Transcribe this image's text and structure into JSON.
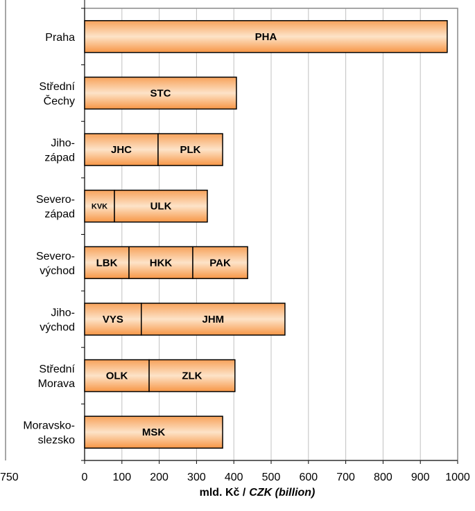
{
  "chart_data": {
    "type": "bar",
    "orientation": "horizontal",
    "stacked": true,
    "xlabel_parts": [
      "mld. Kč /",
      "CZK (billion)"
    ],
    "annotations": [
      "750"
    ],
    "color": "#f79646",
    "grid": true,
    "xlim": [
      0,
      1000
    ],
    "xticks": [
      0,
      100,
      200,
      300,
      400,
      500,
      600,
      700,
      800,
      900,
      1000
    ],
    "bars": [
      {
        "category": "Praha",
        "segments": [
          {
            "label": "PHA",
            "value": 972
          }
        ]
      },
      {
        "category": "Střední\nČechy",
        "segments": [
          {
            "label": "STC",
            "value": 407
          }
        ]
      },
      {
        "category": "Jiho-\nzápad",
        "segments": [
          {
            "label": "JHC",
            "value": 197
          },
          {
            "label": "PLK",
            "value": 173
          }
        ]
      },
      {
        "category": "Severo-\nzápad",
        "segments": [
          {
            "label": "KVK",
            "value": 80
          },
          {
            "label": "ULK",
            "value": 249
          }
        ]
      },
      {
        "category": "Severo-\nvýchod",
        "segments": [
          {
            "label": "LBK",
            "value": 119
          },
          {
            "label": "HKK",
            "value": 171
          },
          {
            "label": "PAK",
            "value": 147
          }
        ]
      },
      {
        "category": "Jiho-\nvýchod",
        "segments": [
          {
            "label": "VYS",
            "value": 152
          },
          {
            "label": "JHM",
            "value": 385
          }
        ]
      },
      {
        "category": "Střední\nMorava",
        "segments": [
          {
            "label": "OLK",
            "value": 173
          },
          {
            "label": "ZLK",
            "value": 230
          }
        ]
      },
      {
        "category": "Moravsko-\nslezsko",
        "segments": [
          {
            "label": "MSK",
            "value": 370
          }
        ]
      }
    ]
  }
}
